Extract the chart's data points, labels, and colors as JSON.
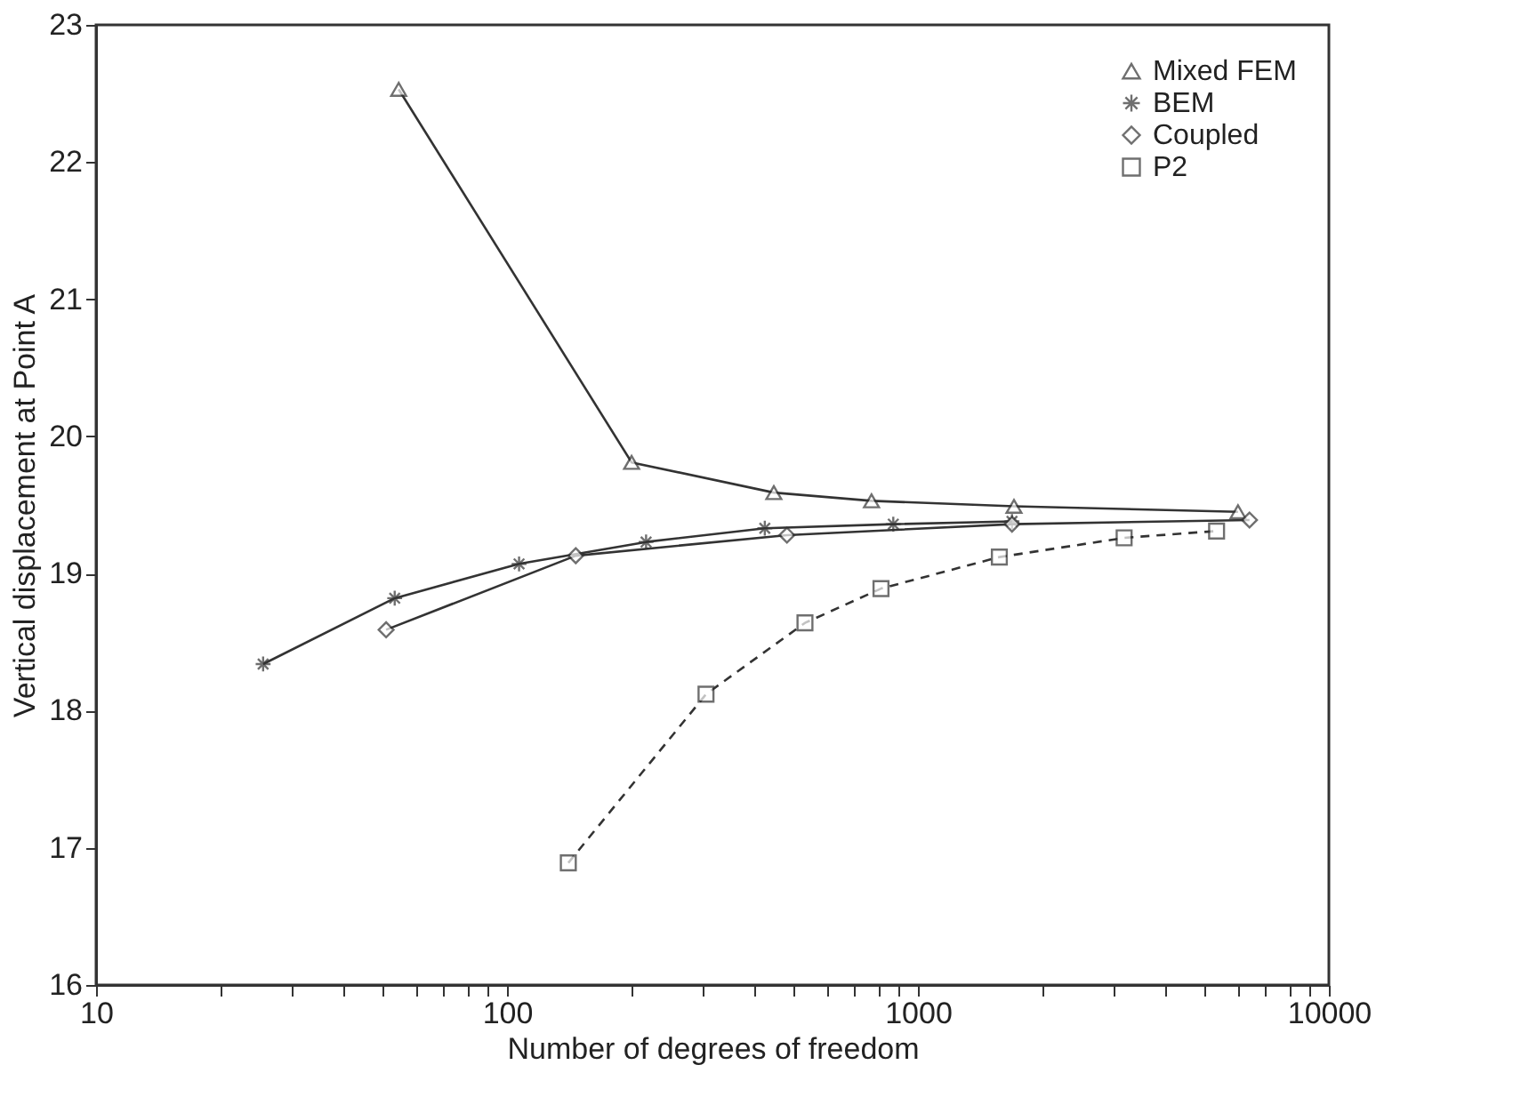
{
  "chart_data": {
    "type": "line",
    "xlabel": "Number of degrees of freedom",
    "ylabel": "Vertical displacement at Point A",
    "log": "x",
    "xlim": [
      10,
      10000
    ],
    "ylim": [
      16,
      23
    ],
    "xticks": [
      10,
      {
        "value": 20,
        "label": null
      },
      {
        "value": 30,
        "label": null
      },
      {
        "value": 40,
        "label": null
      },
      {
        "value": 50,
        "label": null
      },
      {
        "value": 60,
        "label": null
      },
      {
        "value": 70,
        "label": null
      },
      {
        "value": 80,
        "label": null
      },
      {
        "value": 90,
        "label": null
      },
      100,
      {
        "value": 200,
        "label": null
      },
      {
        "value": 300,
        "label": null
      },
      {
        "value": 400,
        "label": null
      },
      {
        "value": 500,
        "label": null
      },
      {
        "value": 600,
        "label": null
      },
      {
        "value": 700,
        "label": null
      },
      {
        "value": 800,
        "label": null
      },
      {
        "value": 900,
        "label": null
      },
      1000,
      {
        "value": 2000,
        "label": null
      },
      {
        "value": 3000,
        "label": null
      },
      {
        "value": 4000,
        "label": null
      },
      {
        "value": 5000,
        "label": null
      },
      {
        "value": 6000,
        "label": null
      },
      {
        "value": 7000,
        "label": null
      },
      {
        "value": 8000,
        "label": null
      },
      {
        "value": 9000,
        "label": null
      },
      10000
    ],
    "yticks": [
      16,
      17,
      18,
      19,
      20,
      21,
      22,
      23
    ],
    "grid": false,
    "legend": "top right",
    "series": [
      {
        "name": "Mixed FEM",
        "color": "#333333",
        "marker": "triangle",
        "line_style": "solid",
        "x": [
          54.5,
          201,
          446,
          771,
          1713,
          6010
        ],
        "values": [
          22.53,
          19.81,
          19.59,
          19.53,
          19.49,
          19.45
        ]
      },
      {
        "name": "BEM",
        "color": "#333333",
        "marker": "cross",
        "line_style": "solid",
        "x": [
          25.5,
          53.3,
          107,
          218,
          424,
          871,
          1694
        ],
        "values": [
          18.34,
          18.82,
          19.07,
          19.23,
          19.33,
          19.36,
          19.38
        ]
      },
      {
        "name": "Coupled",
        "color": "#333333",
        "marker": "diamond",
        "line_style": "solid",
        "x": [
          50.8,
          147,
          480,
          1694,
          6410
        ],
        "values": [
          18.59,
          19.13,
          19.28,
          19.36,
          19.39
        ]
      },
      {
        "name": "P2",
        "color": "#333333",
        "marker": "square",
        "line_style": "dashed",
        "x": [
          141,
          305,
          531,
          813,
          1578,
          3175,
          5330
        ],
        "values": [
          16.89,
          18.12,
          18.64,
          18.89,
          19.12,
          19.26,
          19.31
        ]
      }
    ]
  }
}
